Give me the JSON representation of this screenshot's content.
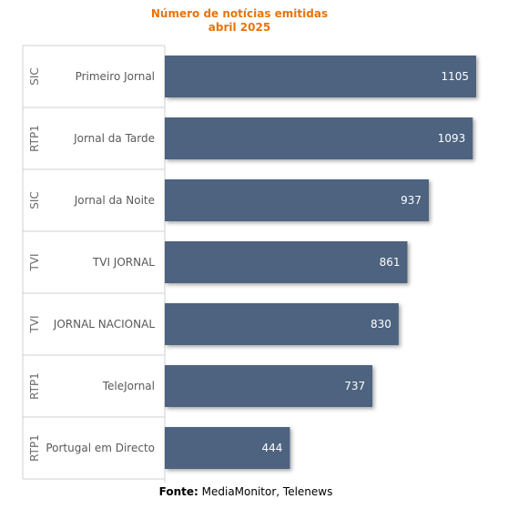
{
  "chart_data": {
    "type": "bar",
    "orientation": "horizontal",
    "title": [
      "Número de notícias emitidas",
      "abril 2025"
    ],
    "categories": [
      "Primeiro Jornal",
      "Jornal da Tarde",
      "Jornal da Noite",
      "TVI JORNAL",
      "JORNAL NACIONAL",
      "TeleJornal",
      "Portugal em Directo"
    ],
    "groups": [
      "SIC",
      "RTP1",
      "SIC",
      "TVI",
      "TVI",
      "RTP1",
      "RTP1"
    ],
    "values": [
      1105,
      1093,
      937,
      861,
      830,
      737,
      444
    ],
    "xlim": [
      0,
      1105
    ],
    "grid": false,
    "legend": "none",
    "bar_color": "#4d6480",
    "title_color": "#e8740c"
  },
  "source": {
    "label": "Fonte:",
    "text": "MediaMonitor, Telenews"
  }
}
